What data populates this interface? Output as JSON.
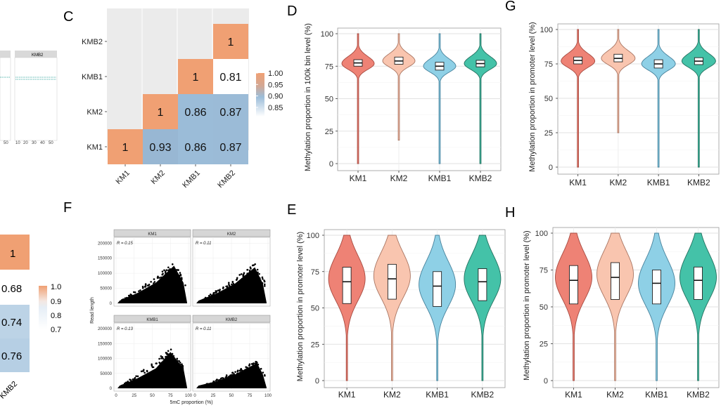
{
  "colors": {
    "km1": "#ee8275",
    "km1_stroke": "#a64a40",
    "km2": "#f9c5af",
    "km2_stroke": "#a97562",
    "kmb1": "#8ed0e6",
    "kmb1_stroke": "#47819b",
    "kmb2": "#44c2a8",
    "kmb2_stroke": "#23705f",
    "heat_high": "#f0a073",
    "heat_mid": "#ffffff",
    "heat_low": "#9cbdd9",
    "panel_bg": "#ebebeb"
  },
  "panels": {
    "B_label": "",
    "C_label": "C",
    "D_label": "D",
    "E_label": "E",
    "F_label": "F",
    "G_label": "G",
    "H_label": "H"
  },
  "panel_a_fragment": {
    "strip_left": "",
    "strip_right": "KMB2",
    "ticks": [
      "10",
      "20",
      "30",
      "40",
      "50"
    ],
    "tick_left": "50"
  },
  "heat_partial": {
    "cells": [
      "1",
      "0.68",
      "0.74",
      "0.76"
    ],
    "legend_values": [
      "1.0",
      "0.9",
      "0.8",
      "0.7"
    ],
    "xlabel_fragment": "KMB2"
  },
  "chart_data": [
    {
      "id": "C",
      "type": "heatmap",
      "rows": [
        "KMB2",
        "KMB1",
        "KM2",
        "KM1"
      ],
      "cols": [
        "KM1",
        "KM2",
        "KMB1",
        "KMB2"
      ],
      "values": [
        [
          null,
          null,
          null,
          1
        ],
        [
          null,
          null,
          1,
          0.81
        ],
        [
          null,
          1,
          0.86,
          0.87
        ],
        [
          1,
          0.93,
          0.86,
          0.87
        ]
      ],
      "labels": [
        [
          "",
          "",
          "",
          "1"
        ],
        [
          "",
          "",
          "1",
          "0.81"
        ],
        [
          "",
          "1",
          "0.86",
          "0.87"
        ],
        [
          "1",
          "0.93",
          "0.86",
          "0.87"
        ]
      ],
      "legend": {
        "range": [
          0.81,
          1.0
        ],
        "ticks": [
          "1.00",
          "0.95",
          "0.90",
          "0.85"
        ],
        "tick_values": [
          1.0,
          0.95,
          0.9,
          0.85
        ]
      }
    },
    {
      "id": "D",
      "type": "violin",
      "ylabel": "Methylation proportion in 100k bin level (%)",
      "ylim": [
        0,
        100
      ],
      "yticks": [
        "0",
        "25",
        "50",
        "75",
        "100"
      ],
      "ytick_values": [
        0,
        25,
        50,
        75,
        100
      ],
      "categories": [
        "KM1",
        "KM2",
        "KMB1",
        "KMB2"
      ],
      "series": [
        {
          "name": "KM1",
          "mode": 77,
          "min": 0,
          "max": 100,
          "q1": 75,
          "median": 77.5,
          "q3": 80
        },
        {
          "name": "KM2",
          "mode": 79,
          "min": 18,
          "max": 100,
          "q1": 76.5,
          "median": 79,
          "q3": 82
        },
        {
          "name": "KMB1",
          "mode": 75,
          "min": 0,
          "max": 100,
          "q1": 72,
          "median": 75,
          "q3": 78
        },
        {
          "name": "KMB2",
          "mode": 77,
          "min": 0,
          "max": 100,
          "q1": 74.5,
          "median": 77,
          "q3": 79.5
        }
      ]
    },
    {
      "id": "G",
      "type": "violin",
      "ylabel": "Methylation proportion in promoter level (%)",
      "ylim": [
        0,
        100
      ],
      "yticks": [
        "0",
        "25",
        "50",
        "75",
        "100"
      ],
      "ytick_values": [
        0,
        25,
        50,
        75,
        100
      ],
      "categories": [
        "KM1",
        "KM2",
        "KMB1",
        "KMB2"
      ],
      "series": [
        {
          "name": "KM1",
          "mode": 77,
          "min": 0,
          "max": 100,
          "q1": 75,
          "median": 77.5,
          "q3": 80
        },
        {
          "name": "KM2",
          "mode": 79,
          "min": 25,
          "max": 100,
          "q1": 76.5,
          "median": 79,
          "q3": 82
        },
        {
          "name": "KMB1",
          "mode": 75,
          "min": 0,
          "max": 100,
          "q1": 72,
          "median": 75,
          "q3": 78
        },
        {
          "name": "KMB2",
          "mode": 77,
          "min": 0,
          "max": 100,
          "q1": 74.5,
          "median": 77,
          "q3": 79.5
        }
      ]
    },
    {
      "id": "E",
      "type": "violin",
      "ylabel": "Methylation proportion in promoter level (%)",
      "ylim": [
        0,
        100
      ],
      "yticks": [
        "0",
        "25",
        "50",
        "75",
        "100"
      ],
      "ytick_values": [
        0,
        25,
        50,
        75,
        100
      ],
      "categories": [
        "KM1",
        "KM2",
        "KMB1",
        "KMB2"
      ],
      "series": [
        {
          "name": "KM1",
          "mode": 70,
          "min": 0,
          "max": 100,
          "q1": 53,
          "median": 68,
          "q3": 78
        },
        {
          "name": "KM2",
          "mode": 72,
          "min": 0,
          "max": 100,
          "q1": 56,
          "median": 70,
          "q3": 80
        },
        {
          "name": "KMB1",
          "mode": 66,
          "min": 0,
          "max": 100,
          "q1": 51,
          "median": 65,
          "q3": 75
        },
        {
          "name": "KMB2",
          "mode": 70,
          "min": 0,
          "max": 100,
          "q1": 55,
          "median": 68,
          "q3": 77
        }
      ]
    },
    {
      "id": "H",
      "type": "violin",
      "ylabel": "Methylation proportion in promoter level (%)",
      "ylim": [
        0,
        100
      ],
      "yticks": [
        "0",
        "25",
        "50",
        "75",
        "100"
      ],
      "ytick_values": [
        0,
        25,
        50,
        75,
        100
      ],
      "categories": [
        "KM1",
        "KM2",
        "KMB1",
        "KMB2"
      ],
      "series": [
        {
          "name": "KM1",
          "mode": 70,
          "min": 0,
          "max": 100,
          "q1": 52,
          "median": 68,
          "q3": 78
        },
        {
          "name": "KM2",
          "mode": 72,
          "min": 0,
          "max": 100,
          "q1": 55,
          "median": 70,
          "q3": 80
        },
        {
          "name": "KMB1",
          "mode": 66,
          "min": 0,
          "max": 100,
          "q1": 52,
          "median": 66,
          "q3": 75
        },
        {
          "name": "KMB2",
          "mode": 70,
          "min": 0,
          "max": 100,
          "q1": 55,
          "median": 68,
          "q3": 77
        }
      ]
    },
    {
      "id": "F",
      "type": "scatter",
      "xlabel": "5mC proportion (%)",
      "ylabel": "Read length",
      "xlim": [
        0,
        100
      ],
      "ylim": [
        0,
        210000
      ],
      "xticks": [
        "0",
        "25",
        "50",
        "75",
        "100"
      ],
      "xtick_values": [
        0,
        25,
        50,
        75,
        100
      ],
      "yticks": [
        "0",
        "50000",
        "100000",
        "150000",
        "200000"
      ],
      "ytick_values": [
        0,
        50000,
        100000,
        150000,
        200000
      ],
      "facets": [
        {
          "name": "KM1",
          "r": "R = 0.15",
          "peak_x": 80,
          "peak_y": 125000
        },
        {
          "name": "KM2",
          "r": "R = 0.11",
          "peak_x": 82,
          "peak_y": 120000
        },
        {
          "name": "KMB1",
          "r": "R = 0.13",
          "peak_x": 75,
          "peak_y": 122000
        },
        {
          "name": "KMB2",
          "r": "R = 0.11",
          "peak_x": 85,
          "peak_y": 85000
        }
      ]
    }
  ]
}
